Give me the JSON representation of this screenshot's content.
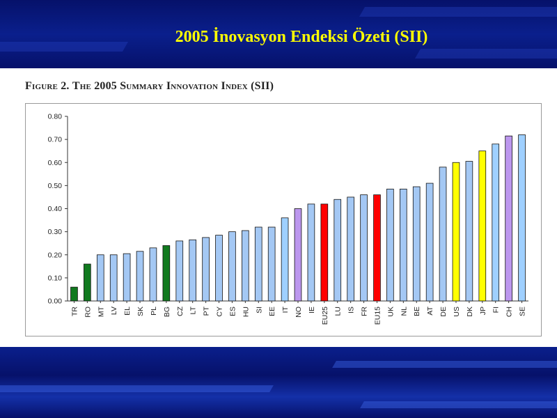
{
  "slide": {
    "title": "2005 İnovasyon Endeksi Özeti (SII)"
  },
  "figure": {
    "label": "Figure 2.",
    "title": "The 2005 Summary Innovation Index (SII)"
  },
  "colors": {
    "light_blue": "#a4c8f4",
    "green": "#117a1f",
    "purple": "#bc97ee",
    "red": "#ff0000",
    "yellow": "#ffff00",
    "bright_blue": "#9fd0ff"
  },
  "chart_data": {
    "type": "bar",
    "title": "",
    "xlabel": "",
    "ylabel": "",
    "ylim": [
      0,
      0.8
    ],
    "yticks": [
      "0.00",
      "0.10",
      "0.20",
      "0.30",
      "0.40",
      "0.50",
      "0.60",
      "0.70",
      "0.80"
    ],
    "grid": false,
    "categories": [
      "TR",
      "RO",
      "MT",
      "LV",
      "EL",
      "SK",
      "PL",
      "BG",
      "CZ",
      "LT",
      "PT",
      "CY",
      "ES",
      "HU",
      "SI",
      "EE",
      "IT",
      "NO",
      "IE",
      "EU25",
      "LU",
      "IS",
      "FR",
      "EU15",
      "UK",
      "NL",
      "BE",
      "AT",
      "DE",
      "US",
      "DK",
      "JP",
      "FI",
      "CH",
      "SE"
    ],
    "values": [
      0.06,
      0.16,
      0.2,
      0.2,
      0.205,
      0.215,
      0.23,
      0.24,
      0.26,
      0.265,
      0.275,
      0.285,
      0.3,
      0.305,
      0.32,
      0.32,
      0.36,
      0.4,
      0.42,
      0.42,
      0.44,
      0.45,
      0.46,
      0.46,
      0.485,
      0.485,
      0.495,
      0.51,
      0.58,
      0.6,
      0.605,
      0.65,
      0.68,
      0.715,
      0.72
    ],
    "bar_colors": [
      "green",
      "green",
      "light_blue",
      "light_blue",
      "light_blue",
      "light_blue",
      "light_blue",
      "green",
      "light_blue",
      "light_blue",
      "light_blue",
      "light_blue",
      "light_blue",
      "light_blue",
      "light_blue",
      "light_blue",
      "bright_blue",
      "purple",
      "light_blue",
      "red",
      "light_blue",
      "light_blue",
      "light_blue",
      "red",
      "light_blue",
      "light_blue",
      "light_blue",
      "light_blue",
      "light_blue",
      "yellow",
      "light_blue",
      "yellow",
      "bright_blue",
      "purple",
      "bright_blue"
    ]
  }
}
